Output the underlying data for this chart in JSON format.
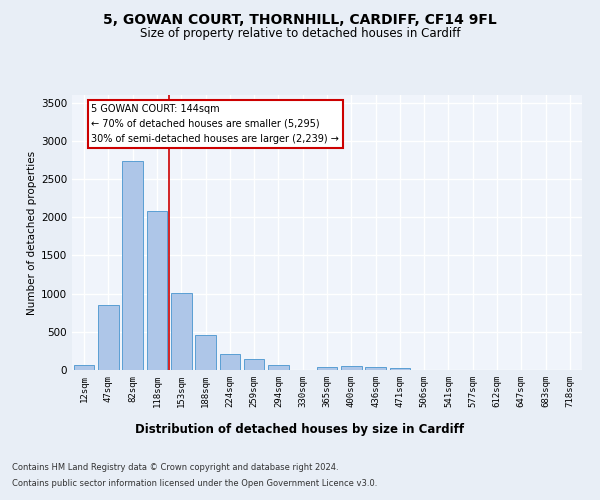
{
  "title": "5, GOWAN COURT, THORNHILL, CARDIFF, CF14 9FL",
  "subtitle": "Size of property relative to detached houses in Cardiff",
  "xlabel": "Distribution of detached houses by size in Cardiff",
  "ylabel": "Number of detached properties",
  "categories": [
    "12sqm",
    "47sqm",
    "82sqm",
    "118sqm",
    "153sqm",
    "188sqm",
    "224sqm",
    "259sqm",
    "294sqm",
    "330sqm",
    "365sqm",
    "400sqm",
    "436sqm",
    "471sqm",
    "506sqm",
    "541sqm",
    "577sqm",
    "612sqm",
    "647sqm",
    "683sqm",
    "718sqm"
  ],
  "values": [
    65,
    855,
    2730,
    2080,
    1010,
    455,
    210,
    145,
    60,
    0,
    45,
    50,
    35,
    25,
    0,
    0,
    0,
    0,
    0,
    0,
    0
  ],
  "bar_color": "#aec6e8",
  "bar_edge_color": "#5a9fd4",
  "property_line_x": 3,
  "property_line_label": "5 GOWAN COURT: 144sqm",
  "annotation_line1": "← 70% of detached houses are smaller (5,295)",
  "annotation_line2": "30% of semi-detached houses are larger (2,239) →",
  "annotation_box_color": "#ffffff",
  "annotation_box_edge_color": "#cc0000",
  "vline_color": "#cc0000",
  "ylim": [
    0,
    3600
  ],
  "yticks": [
    0,
    500,
    1000,
    1500,
    2000,
    2500,
    3000,
    3500
  ],
  "bg_color": "#e8eef6",
  "plot_bg_color": "#f0f4fb",
  "grid_color": "#ffffff",
  "title_fontsize": 10,
  "subtitle_fontsize": 8.5,
  "footer_line1": "Contains HM Land Registry data © Crown copyright and database right 2024.",
  "footer_line2": "Contains public sector information licensed under the Open Government Licence v3.0."
}
